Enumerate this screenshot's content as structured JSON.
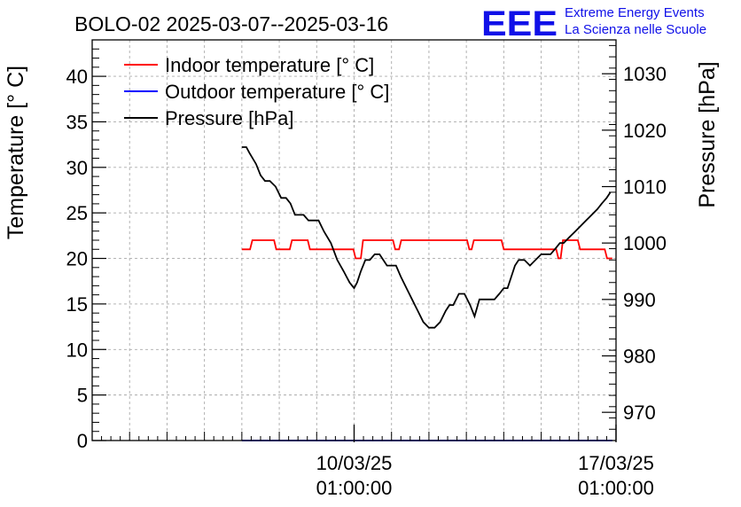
{
  "chart_data": {
    "type": "line",
    "title": "BOLO-02 2025-03-07--2025-03-16",
    "ylabel_left": "Temperature [° C]",
    "ylabel_right": "Pressure [hPa]",
    "x_ticks": [
      {
        "day": 3,
        "line1": "10/03/25",
        "line2": "01:00:00"
      },
      {
        "day": 10,
        "line1": "17/03/25",
        "line2": "01:00:00"
      }
    ],
    "x_range_days": [
      -4,
      10.0
    ],
    "ylim_left": [
      0,
      44
    ],
    "ylim_right": [
      965,
      1036
    ],
    "left_ticks": [
      0,
      5,
      10,
      15,
      20,
      25,
      30,
      35,
      40
    ],
    "right_ticks": [
      970,
      980,
      990,
      1000,
      1010,
      1020,
      1030
    ],
    "legend": [
      {
        "label": "Indoor temperature [° C]",
        "color": "#ff0000"
      },
      {
        "label": "Outdoor temperature [° C]",
        "color": "#0000ff"
      },
      {
        "label": "Pressure [hPa]",
        "color": "#000000"
      }
    ],
    "series": [
      {
        "name": "Indoor temperature [° C]",
        "axis": "left",
        "color": "#ff0000",
        "x": [
          0,
          0.22,
          0.28,
          0.86,
          0.92,
          1.28,
          1.34,
          1.76,
          1.82,
          2.02,
          2.08,
          2.98,
          3.04,
          3.18,
          3.24,
          4.04,
          4.1,
          4.2,
          4.26,
          6.02,
          6.08,
          6.14,
          6.2,
          6.94,
          7.0,
          8.4,
          8.46,
          8.52,
          8.58,
          8.98,
          9.04,
          9.7,
          9.76,
          9.9
        ],
        "values": [
          21,
          21,
          22,
          22,
          21,
          21,
          22,
          22,
          21,
          21,
          21,
          21,
          20,
          20,
          22,
          22,
          21,
          21,
          22,
          22,
          21,
          21,
          22,
          22,
          21,
          21,
          20,
          20,
          22,
          22,
          21,
          21,
          20,
          20
        ]
      },
      {
        "name": "Outdoor temperature [° C]",
        "axis": "left",
        "color": "#0000ff",
        "x": [
          0,
          9.9
        ],
        "values": [
          0,
          0
        ]
      },
      {
        "name": "Pressure [hPa]",
        "axis": "right",
        "color": "#000000",
        "x": [
          0,
          0.12,
          0.2,
          0.38,
          0.5,
          0.62,
          0.75,
          0.9,
          1.05,
          1.18,
          1.3,
          1.42,
          1.55,
          1.65,
          1.78,
          1.92,
          2.05,
          2.2,
          2.38,
          2.55,
          2.72,
          2.88,
          3.0,
          3.08,
          3.18,
          3.3,
          3.42,
          3.55,
          3.68,
          3.78,
          3.88,
          4.0,
          4.12,
          4.25,
          4.4,
          4.55,
          4.7,
          4.85,
          5.0,
          5.15,
          5.3,
          5.45,
          5.55,
          5.65,
          5.8,
          5.95,
          6.1,
          6.22,
          6.35,
          6.5,
          6.62,
          6.75,
          6.88,
          7.0,
          7.1,
          7.2,
          7.3,
          7.4,
          7.55,
          7.7,
          7.85,
          8.0,
          8.12,
          8.25,
          8.38,
          8.5,
          8.6,
          8.75,
          8.9,
          9.05,
          9.2,
          9.35,
          9.5,
          9.62,
          9.75,
          9.85
        ],
        "values": [
          1017,
          1017,
          1016,
          1014,
          1012,
          1011,
          1011,
          1010,
          1008,
          1008,
          1007,
          1005,
          1005,
          1005,
          1004,
          1004,
          1004,
          1002,
          1000,
          997,
          995,
          993,
          992,
          993,
          995,
          997,
          997,
          998,
          998,
          997,
          996,
          996,
          996,
          994,
          992,
          990,
          988,
          986,
          985,
          985,
          986,
          988,
          989,
          989,
          991,
          991,
          989,
          987,
          990,
          990,
          990,
          990,
          991,
          992,
          992,
          994,
          996,
          997,
          997,
          996,
          997,
          998,
          998,
          998,
          999,
          1000,
          1000,
          1001,
          1002,
          1003,
          1004,
          1005,
          1006,
          1007,
          1008,
          1009
        ]
      }
    ]
  },
  "logo": {
    "mark": "EEE",
    "line1": "Extreme Energy Events",
    "line2": "La Scienza nelle Scuole",
    "color": "#1010e8"
  }
}
